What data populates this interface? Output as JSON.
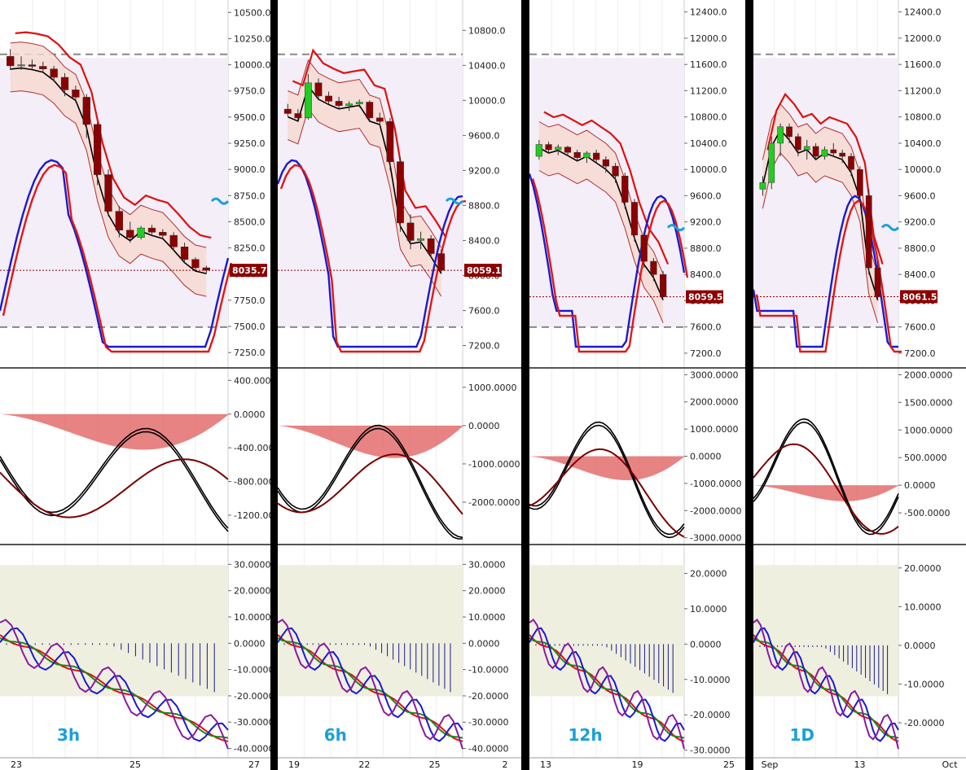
{
  "chart_data": [
    {
      "type": "multi-panel-candlestick",
      "timeframe_label": "3h",
      "x_ticks": [
        "23",
        "25",
        "27"
      ],
      "price_axis": {
        "ticks": [
          "10500.0",
          "10250.0",
          "10000.0",
          "9750.0",
          "9500.0",
          "9250.0",
          "9000.0",
          "8750.0",
          "8500.0",
          "8250.0",
          "8000.0",
          "7750.0",
          "7500.0",
          "7250.0"
        ],
        "range": [
          7150,
          10580
        ]
      },
      "last_price_label": "8035.7",
      "candles": [
        [
          10080,
          10150,
          9950,
          9990
        ],
        [
          9990,
          10080,
          9950,
          10000
        ],
        [
          10000,
          10050,
          9960,
          9985
        ],
        [
          9985,
          10030,
          9930,
          9960
        ],
        [
          9960,
          9990,
          9840,
          9880
        ],
        [
          9880,
          9920,
          9700,
          9760
        ],
        [
          9760,
          9800,
          9640,
          9690
        ],
        [
          9690,
          9720,
          9300,
          9430
        ],
        [
          9430,
          9450,
          8850,
          8950
        ],
        [
          8950,
          9000,
          8550,
          8600
        ],
        [
          8600,
          8650,
          8350,
          8420
        ],
        [
          8420,
          8500,
          8300,
          8350
        ],
        [
          8350,
          8460,
          8330,
          8440
        ],
        [
          8440,
          8470,
          8380,
          8400
        ],
        [
          8400,
          8430,
          8340,
          8370
        ],
        [
          8370,
          8400,
          8220,
          8260
        ],
        [
          8260,
          8300,
          8100,
          8140
        ],
        [
          8140,
          8160,
          8030,
          8060
        ],
        [
          8060,
          8080,
          8000,
          8036
        ]
      ],
      "indicator_panel": {
        "ticks": [
          "400.0000",
          "0.0000",
          "-400.0000",
          "-800.0000",
          "-1200.0000"
        ],
        "range": [
          -1500,
          500
        ]
      },
      "oscillator_panel": {
        "ticks": [
          "30.0000",
          "20.0000",
          "10.0000",
          "0.0000",
          "-10.0000",
          "-20.0000",
          "-30.0000",
          "-40.0000"
        ],
        "range": [
          -42,
          36
        ]
      }
    },
    {
      "type": "multi-panel-candlestick",
      "timeframe_label": "6h",
      "x_ticks": [
        "19",
        "22",
        "25",
        "2"
      ],
      "price_axis": {
        "ticks": [
          "10800.0",
          "10400.0",
          "10000.0",
          "9600.0",
          "9200.0",
          "8800.0",
          "8400.0",
          "8000.0",
          "7600.0",
          "7200.0"
        ],
        "range": [
          7000,
          11100
        ]
      },
      "last_price_label": "8059.1",
      "candles": [
        [
          9900,
          9960,
          9820,
          9850
        ],
        [
          9850,
          9900,
          9780,
          9800
        ],
        [
          9800,
          10300,
          9780,
          10200
        ],
        [
          10200,
          10250,
          10000,
          10050
        ],
        [
          10050,
          10100,
          9960,
          9990
        ],
        [
          9990,
          10040,
          9900,
          9940
        ],
        [
          9940,
          9990,
          9880,
          9960
        ],
        [
          9960,
          10010,
          9920,
          9980
        ],
        [
          9980,
          10000,
          9750,
          9800
        ],
        [
          9800,
          9860,
          9700,
          9760
        ],
        [
          9760,
          9800,
          9200,
          9300
        ],
        [
          9300,
          9350,
          8500,
          8600
        ],
        [
          8600,
          8700,
          8300,
          8400
        ],
        [
          8400,
          8500,
          8300,
          8420
        ],
        [
          8420,
          8460,
          8200,
          8250
        ],
        [
          8250,
          8300,
          8020,
          8059
        ]
      ],
      "indicator_panel": {
        "ticks": [
          "1000.0000",
          "0.0000",
          "-1000.0000",
          "-2000.0000"
        ],
        "range": [
          -3000,
          1400
        ]
      },
      "oscillator_panel": {
        "ticks": [
          "30.0000",
          "20.0000",
          "10.0000",
          "0.0000",
          "-10.0000",
          "-20.0000",
          "-30.0000",
          "-40.0000"
        ],
        "range": [
          -42,
          36
        ]
      }
    },
    {
      "type": "multi-panel-candlestick",
      "timeframe_label": "12h",
      "x_ticks": [
        "13",
        "19",
        "25"
      ],
      "price_axis": {
        "ticks": [
          "12400.0",
          "12000.0",
          "11600.0",
          "11200.0",
          "10800.0",
          "10400.0",
          "10000.0",
          "9600.0",
          "9200.0",
          "8800.0",
          "8400.0",
          "8000.0",
          "7600.0",
          "7200.0"
        ],
        "range": [
          7050,
          12520
        ]
      },
      "last_price_label": "8059.5",
      "candles": [
        [
          10200,
          10450,
          10150,
          10380
        ],
        [
          10380,
          10420,
          10250,
          10300
        ],
        [
          10300,
          10380,
          10220,
          10340
        ],
        [
          10340,
          10360,
          10200,
          10260
        ],
        [
          10260,
          10300,
          10120,
          10180
        ],
        [
          10180,
          10280,
          10100,
          10250
        ],
        [
          10250,
          10300,
          10100,
          10150
        ],
        [
          10150,
          10200,
          9950,
          10050
        ],
        [
          10050,
          10100,
          9800,
          9900
        ],
        [
          9900,
          9950,
          9400,
          9500
        ],
        [
          9500,
          9550,
          8900,
          9000
        ],
        [
          9000,
          9050,
          8500,
          8600
        ],
        [
          8600,
          8650,
          8300,
          8400
        ],
        [
          8400,
          8450,
          8050,
          8060
        ]
      ],
      "indicator_panel": {
        "ticks": [
          "3000.0000",
          "2000.0000",
          "1000.0000",
          "0.0000",
          "-1000.0000",
          "-2000.0000",
          "-3000.0000"
        ],
        "range": [
          -3100,
          3100
        ]
      },
      "oscillator_panel": {
        "ticks": [
          "20.0000",
          "10.0000",
          "0.0000",
          "-10.0000",
          "-20.0000",
          "-30.0000"
        ],
        "range": [
          -31,
          27
        ]
      }
    },
    {
      "type": "multi-panel-candlestick",
      "timeframe_label": "1D",
      "x_ticks": [
        "Sep",
        "13",
        "Oct"
      ],
      "price_axis": {
        "ticks": [
          "12400.0",
          "12000.0",
          "11600.0",
          "11200.0",
          "10800.0",
          "10400.0",
          "10000.0",
          "9600.0",
          "9200.0",
          "8800.0",
          "8400.0",
          "8000.0",
          "7600.0",
          "7200.0"
        ],
        "range": [
          7050,
          12520
        ]
      },
      "last_price_label": "8061.5",
      "candles": [
        [
          9700,
          9900,
          9600,
          9800
        ],
        [
          9800,
          10500,
          9700,
          10400
        ],
        [
          10400,
          10700,
          10200,
          10650
        ],
        [
          10650,
          10700,
          10400,
          10500
        ],
        [
          10500,
          10550,
          10200,
          10300
        ],
        [
          10300,
          10450,
          10150,
          10350
        ],
        [
          10350,
          10400,
          10150,
          10200
        ],
        [
          10200,
          10350,
          10150,
          10300
        ],
        [
          10300,
          10400,
          10200,
          10250
        ],
        [
          10250,
          10300,
          10100,
          10200
        ],
        [
          10200,
          10250,
          9900,
          10000
        ],
        [
          10000,
          10050,
          9500,
          9600
        ],
        [
          9600,
          9700,
          8400,
          8500
        ],
        [
          8500,
          8600,
          8000,
          8060
        ]
      ],
      "indicator_panel": {
        "ticks": [
          "2000.0000",
          "1500.0000",
          "1000.0000",
          "500.0000",
          "0.0000",
          "-500.0000"
        ],
        "range": [
          -1000,
          2050
        ]
      },
      "oscillator_panel": {
        "ticks": [
          "20.0000",
          "10.0000",
          "0.0000",
          "-10.0000",
          "-20.0000"
        ],
        "range": [
          -28,
          25
        ]
      }
    }
  ]
}
